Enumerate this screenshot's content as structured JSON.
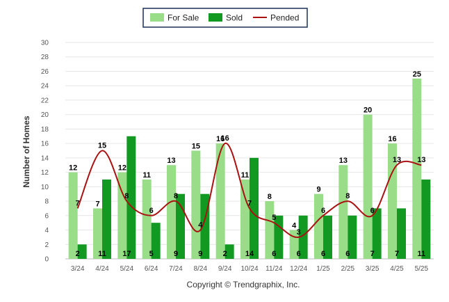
{
  "chart_data": {
    "type": "bar",
    "categories": [
      "3/24",
      "4/24",
      "5/24",
      "6/24",
      "7/24",
      "8/24",
      "9/24",
      "10/24",
      "11/24",
      "12/24",
      "1/25",
      "2/25",
      "3/25",
      "4/25",
      "5/25"
    ],
    "series": [
      {
        "name": "For Sale",
        "type": "bar",
        "color": "#99dd88",
        "values": [
          12,
          7,
          12,
          11,
          13,
          15,
          16,
          11,
          8,
          4,
          9,
          13,
          20,
          16,
          25
        ]
      },
      {
        "name": "Sold",
        "type": "bar",
        "color": "#119922",
        "values": [
          2,
          11,
          17,
          5,
          9,
          9,
          2,
          14,
          6,
          6,
          6,
          6,
          7,
          7,
          11
        ]
      },
      {
        "name": "Pended",
        "type": "line",
        "color": "#aa1111",
        "values": [
          7,
          15,
          8,
          6,
          8,
          4,
          16,
          7,
          5,
          3,
          6,
          8,
          6,
          13,
          13
        ]
      }
    ],
    "ylabel": "Number of Homes",
    "xlabel": "",
    "ylim": [
      0,
      30
    ],
    "yticks": [
      0,
      2,
      4,
      6,
      8,
      10,
      12,
      14,
      16,
      18,
      20,
      22,
      24,
      26,
      28,
      30
    ],
    "grid": true,
    "legend_position": "top-center"
  },
  "footer": {
    "copyright": "Copyright © Trendgraphix, Inc."
  }
}
